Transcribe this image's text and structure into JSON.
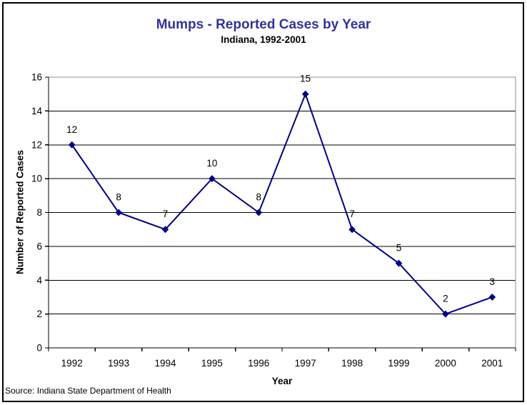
{
  "page": {
    "background": "#FFFFFF",
    "frame_border_color": "#000000"
  },
  "chart_data": {
    "type": "line",
    "title": "Mumps - Reported Cases by Year",
    "subtitle": "Indiana, 1992-2001",
    "xlabel": "Year",
    "ylabel": "Number of Reported Cases",
    "categories": [
      "1992",
      "1993",
      "1994",
      "1995",
      "1996",
      "1997",
      "1998",
      "1999",
      "2000",
      "2001"
    ],
    "values": [
      12,
      8,
      7,
      10,
      8,
      15,
      7,
      5,
      2,
      3
    ],
    "ylim": [
      0,
      16
    ],
    "yticks": [
      0,
      2,
      4,
      6,
      8,
      10,
      12,
      14,
      16
    ],
    "grid": true,
    "show_data_labels": true,
    "legend": "none",
    "marker": "diamond",
    "line_color": "#000080",
    "gridline_color": "#000000",
    "plot_border_color": "#8F8F8F",
    "title_color": "#333399",
    "text_color": "#000000",
    "source_note": "Source: Indiana State Department of Health"
  }
}
